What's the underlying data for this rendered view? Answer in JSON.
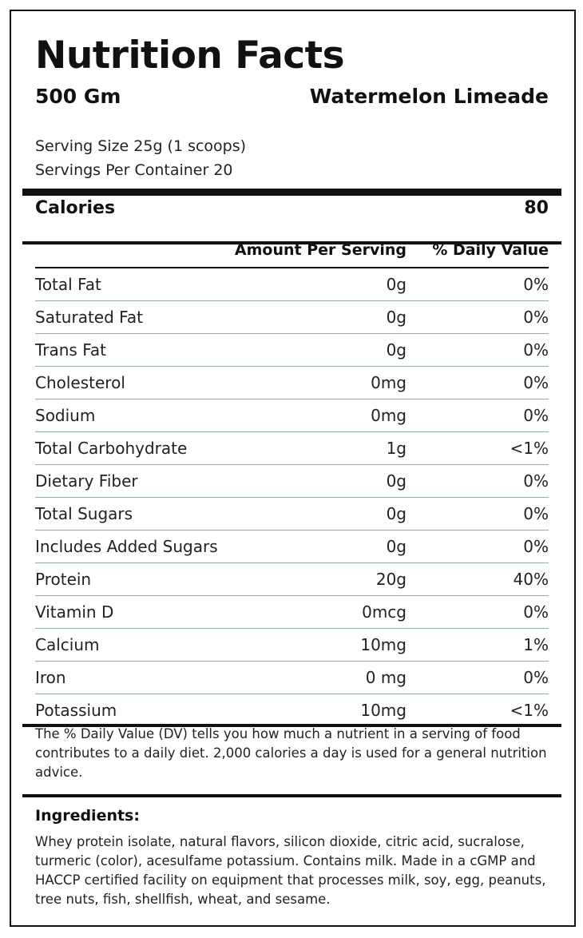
{
  "title": "Nutrition Facts",
  "size": "500 Gm",
  "flavor": "Watermelon Limeade",
  "serving_size": "Serving Size 25g (1 scoops)",
  "servings_per_container": "Servings Per Container 20",
  "calories_label": "Calories",
  "calories_value": "80",
  "header": {
    "amount": "Amount Per Serving",
    "dv": "% Daily Value"
  },
  "nutrients": [
    {
      "name": "Total Fat",
      "amount": "0g",
      "dv": "0%"
    },
    {
      "name": "Saturated Fat",
      "amount": "0g",
      "dv": "0%"
    },
    {
      "name": "Trans Fat",
      "amount": "0g",
      "dv": "0%"
    },
    {
      "name": "Cholesterol",
      "amount": "0mg",
      "dv": "0%"
    },
    {
      "name": "Sodium",
      "amount": "0mg",
      "dv": "0%"
    },
    {
      "name": "Total Carbohydrate",
      "amount": "1g",
      "dv": "<1%"
    },
    {
      "name": "Dietary Fiber",
      "amount": "0g",
      "dv": "0%"
    },
    {
      "name": "Total Sugars",
      "amount": "0g",
      "dv": "0%"
    },
    {
      "name": "Includes Added Sugars",
      "amount": "0g",
      "dv": "0%"
    },
    {
      "name": "Protein",
      "amount": "20g",
      "dv": "40%"
    },
    {
      "name": "Vitamin D",
      "amount": "0mcg",
      "dv": "0%"
    },
    {
      "name": "Calcium",
      "amount": "10mg",
      "dv": "1%"
    },
    {
      "name": "Iron",
      "amount": "0 mg",
      "dv": "0%"
    },
    {
      "name": "Potassium",
      "amount": "10mg",
      "dv": "<1%"
    }
  ],
  "footnote": "The % Daily Value (DV) tells you how much a nutrient in a serving of food contributes to a daily diet. 2,000 calories a day is used for a general nutrition advice.",
  "ingredients_title": "Ingredients:",
  "ingredients_text": "Whey protein isolate, natural flavors, silicon dioxide, citric acid, sucralose, turmeric (color), acesulfame potassium.   Contains milk.   Made in a cGMP and HACCP certified facility on equipment that processes milk, soy, egg, peanuts, tree nuts, fish, shellfish, wheat, and sesame."
}
